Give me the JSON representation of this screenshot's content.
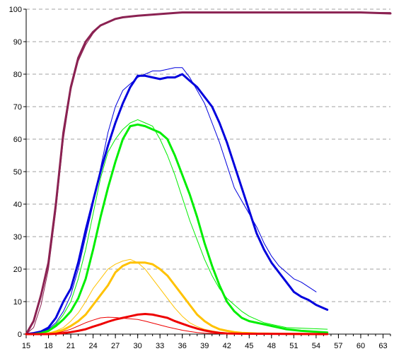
{
  "chart_data": {
    "type": "line",
    "title": "",
    "xlabel": "",
    "ylabel": "",
    "xlim": [
      15,
      64
    ],
    "ylim": [
      0,
      100
    ],
    "x_ticks": [
      "15",
      "18",
      "21",
      "24",
      "27",
      "30",
      "33",
      "36",
      "39",
      "42",
      "45",
      "48",
      "51",
      "54",
      "57",
      "60",
      "63"
    ],
    "y_ticks": [
      "0",
      "10",
      "20",
      "30",
      "40",
      "50",
      "60",
      "70",
      "80",
      "90",
      "100"
    ],
    "grid": "horizontal dashed",
    "legend": "none",
    "series": [
      {
        "color": "#8b2252",
        "width": 3,
        "points": [
          [
            15,
            0
          ],
          [
            16,
            4
          ],
          [
            17,
            12
          ],
          [
            18,
            22
          ],
          [
            19,
            40
          ],
          [
            20,
            62
          ],
          [
            21,
            76
          ],
          [
            22,
            85
          ],
          [
            23,
            90
          ],
          [
            24,
            93
          ],
          [
            25,
            95
          ],
          [
            26,
            96
          ],
          [
            27,
            97
          ],
          [
            28,
            97.5
          ],
          [
            30,
            98
          ],
          [
            33,
            98.5
          ],
          [
            36,
            99
          ],
          [
            40,
            99
          ],
          [
            45,
            99
          ],
          [
            50,
            99
          ],
          [
            55,
            99
          ],
          [
            60,
            99
          ],
          [
            64,
            98.7
          ]
        ]
      },
      {
        "color": "#8b2252",
        "width": 1,
        "points": [
          [
            15,
            0
          ],
          [
            16,
            2
          ],
          [
            17,
            9
          ],
          [
            18,
            20
          ],
          [
            19,
            38
          ],
          [
            20,
            60
          ],
          [
            21,
            75
          ],
          [
            22,
            84
          ],
          [
            23,
            89
          ],
          [
            24,
            92.5
          ],
          [
            25,
            95
          ],
          [
            26,
            96
          ],
          [
            27,
            97
          ],
          [
            28,
            97.5
          ],
          [
            30,
            98
          ],
          [
            33,
            98.5
          ],
          [
            36,
            99
          ],
          [
            40,
            99
          ],
          [
            45,
            99
          ],
          [
            50,
            99
          ],
          [
            55,
            99
          ],
          [
            60,
            99
          ],
          [
            64,
            99
          ]
        ]
      },
      {
        "color": "#0000dd",
        "width": 3,
        "points": [
          [
            15,
            0
          ],
          [
            16,
            0.3
          ],
          [
            17,
            0.8
          ],
          [
            18,
            2
          ],
          [
            19,
            5
          ],
          [
            20,
            10
          ],
          [
            21,
            14
          ],
          [
            22,
            22
          ],
          [
            23,
            32
          ],
          [
            24,
            41
          ],
          [
            25,
            50
          ],
          [
            26,
            58
          ],
          [
            27,
            65
          ],
          [
            28,
            71
          ],
          [
            29,
            76
          ],
          [
            30,
            79.5
          ],
          [
            31,
            79.5
          ],
          [
            32,
            79
          ],
          [
            33,
            78.5
          ],
          [
            34,
            79
          ],
          [
            35,
            79
          ],
          [
            36,
            80
          ],
          [
            37,
            78
          ],
          [
            38,
            76
          ],
          [
            39,
            73
          ],
          [
            40,
            70
          ],
          [
            41,
            65
          ],
          [
            42,
            59
          ],
          [
            43,
            52
          ],
          [
            44,
            45
          ],
          [
            45,
            38
          ],
          [
            46,
            31
          ],
          [
            47,
            26
          ],
          [
            48,
            22
          ],
          [
            49,
            19
          ],
          [
            50,
            16
          ],
          [
            51,
            13
          ],
          [
            52,
            11.5
          ],
          [
            53,
            10.5
          ],
          [
            54,
            9
          ],
          [
            55,
            8
          ],
          [
            55.5,
            7.5
          ]
        ]
      },
      {
        "color": "#0000dd",
        "width": 1,
        "points": [
          [
            15,
            0
          ],
          [
            16,
            0.2
          ],
          [
            17,
            0.6
          ],
          [
            18,
            1.5
          ],
          [
            19,
            3.5
          ],
          [
            20,
            7
          ],
          [
            21,
            12
          ],
          [
            22,
            20
          ],
          [
            23,
            30
          ],
          [
            24,
            40
          ],
          [
            25,
            51
          ],
          [
            26,
            62
          ],
          [
            27,
            70
          ],
          [
            28,
            75
          ],
          [
            29,
            77
          ],
          [
            30,
            79
          ],
          [
            31,
            80
          ],
          [
            32,
            81
          ],
          [
            33,
            81
          ],
          [
            34,
            81.5
          ],
          [
            35,
            82
          ],
          [
            36,
            82
          ],
          [
            37,
            79
          ],
          [
            38,
            75
          ],
          [
            39,
            71
          ],
          [
            40,
            65
          ],
          [
            41,
            59
          ],
          [
            42,
            52
          ],
          [
            43,
            45
          ],
          [
            44,
            41
          ],
          [
            45,
            37
          ],
          [
            46,
            33
          ],
          [
            47,
            28
          ],
          [
            48,
            24
          ],
          [
            49,
            21
          ],
          [
            50,
            19
          ],
          [
            51,
            17
          ],
          [
            52,
            16
          ],
          [
            53,
            14.5
          ],
          [
            54,
            13
          ]
        ]
      },
      {
        "color": "#00ee00",
        "width": 3,
        "points": [
          [
            15,
            0
          ],
          [
            16,
            0
          ],
          [
            17,
            0.3
          ],
          [
            18,
            1
          ],
          [
            19,
            2.5
          ],
          [
            20,
            4.5
          ],
          [
            21,
            7
          ],
          [
            22,
            11
          ],
          [
            23,
            17
          ],
          [
            24,
            26
          ],
          [
            25,
            36
          ],
          [
            26,
            45
          ],
          [
            27,
            53
          ],
          [
            28,
            60
          ],
          [
            29,
            64
          ],
          [
            30,
            64.5
          ],
          [
            31,
            64
          ],
          [
            32,
            63
          ],
          [
            33,
            62
          ],
          [
            34,
            60
          ],
          [
            35,
            55
          ],
          [
            36,
            49
          ],
          [
            37,
            43
          ],
          [
            38,
            36
          ],
          [
            39,
            28
          ],
          [
            40,
            21
          ],
          [
            41,
            15
          ],
          [
            42,
            10
          ],
          [
            43,
            7
          ],
          [
            44,
            5
          ],
          [
            45,
            4
          ],
          [
            46,
            3.5
          ],
          [
            47,
            3
          ],
          [
            48,
            2.5
          ],
          [
            49,
            2
          ],
          [
            50,
            1.5
          ],
          [
            52,
            1
          ],
          [
            55.5,
            0.5
          ]
        ]
      },
      {
        "color": "#00ee00",
        "width": 1,
        "points": [
          [
            15,
            0
          ],
          [
            16,
            0.1
          ],
          [
            17,
            0.4
          ],
          [
            18,
            1.2
          ],
          [
            19,
            3
          ],
          [
            20,
            6
          ],
          [
            21,
            10
          ],
          [
            22,
            17
          ],
          [
            23,
            26
          ],
          [
            24,
            37
          ],
          [
            25,
            48
          ],
          [
            26,
            56
          ],
          [
            27,
            60
          ],
          [
            28,
            63
          ],
          [
            29,
            65
          ],
          [
            30,
            66
          ],
          [
            31,
            65
          ],
          [
            32,
            64
          ],
          [
            33,
            60
          ],
          [
            34,
            55
          ],
          [
            35,
            49
          ],
          [
            36,
            42
          ],
          [
            37,
            35
          ],
          [
            38,
            29
          ],
          [
            39,
            23
          ],
          [
            40,
            18
          ],
          [
            41,
            14
          ],
          [
            42,
            11
          ],
          [
            43,
            9
          ],
          [
            44,
            7
          ],
          [
            45,
            5.5
          ],
          [
            46,
            4.5
          ],
          [
            47,
            3.5
          ],
          [
            48,
            3
          ],
          [
            49,
            2.5
          ],
          [
            50,
            2
          ],
          [
            55.5,
            1.5
          ]
        ]
      },
      {
        "color": "#ffc200",
        "width": 3,
        "points": [
          [
            15,
            0
          ],
          [
            17,
            0
          ],
          [
            18,
            0.2
          ],
          [
            19,
            0.6
          ],
          [
            20,
            1.3
          ],
          [
            21,
            2.5
          ],
          [
            22,
            4
          ],
          [
            23,
            6
          ],
          [
            24,
            9
          ],
          [
            25,
            12
          ],
          [
            26,
            15
          ],
          [
            27,
            19
          ],
          [
            28,
            21
          ],
          [
            29,
            22
          ],
          [
            30,
            22
          ],
          [
            31,
            22
          ],
          [
            32,
            21.5
          ],
          [
            33,
            20
          ],
          [
            34,
            18
          ],
          [
            35,
            15
          ],
          [
            36,
            12
          ],
          [
            37,
            9
          ],
          [
            38,
            6
          ],
          [
            39,
            4
          ],
          [
            40,
            2.5
          ],
          [
            41,
            1.5
          ],
          [
            42,
            1
          ],
          [
            43,
            0.6
          ],
          [
            44,
            0.4
          ],
          [
            46,
            0.2
          ],
          [
            49,
            0.1
          ],
          [
            55.5,
            0
          ]
        ]
      },
      {
        "color": "#ffc200",
        "width": 1,
        "points": [
          [
            15,
            0
          ],
          [
            17,
            0.1
          ],
          [
            18,
            0.3
          ],
          [
            19,
            1
          ],
          [
            20,
            2
          ],
          [
            21,
            4
          ],
          [
            22,
            6.5
          ],
          [
            23,
            10
          ],
          [
            24,
            14
          ],
          [
            25,
            17
          ],
          [
            26,
            20
          ],
          [
            27,
            21.5
          ],
          [
            28,
            22.5
          ],
          [
            29,
            23
          ],
          [
            30,
            22
          ],
          [
            31,
            20
          ],
          [
            32,
            17
          ],
          [
            33,
            14
          ],
          [
            34,
            11
          ],
          [
            35,
            8
          ],
          [
            36,
            5.5
          ],
          [
            37,
            3.5
          ],
          [
            38,
            2.3
          ],
          [
            39,
            1.5
          ],
          [
            40,
            1
          ],
          [
            41,
            0.6
          ],
          [
            42,
            0.4
          ],
          [
            44,
            0.2
          ],
          [
            47,
            0.1
          ],
          [
            55.5,
            0
          ]
        ]
      },
      {
        "color": "#ee0000",
        "width": 3,
        "points": [
          [
            15,
            0
          ],
          [
            18,
            0
          ],
          [
            19,
            0.1
          ],
          [
            20,
            0.3
          ],
          [
            21,
            0.6
          ],
          [
            22,
            1
          ],
          [
            23,
            1.5
          ],
          [
            24,
            2.3
          ],
          [
            25,
            3
          ],
          [
            26,
            3.8
          ],
          [
            27,
            4.5
          ],
          [
            28,
            5
          ],
          [
            29,
            5.5
          ],
          [
            30,
            6
          ],
          [
            31,
            6.2
          ],
          [
            32,
            6
          ],
          [
            33,
            5.5
          ],
          [
            34,
            5
          ],
          [
            35,
            4
          ],
          [
            36,
            3.2
          ],
          [
            37,
            2.4
          ],
          [
            38,
            1.7
          ],
          [
            39,
            1.1
          ],
          [
            40,
            0.7
          ],
          [
            41,
            0.4
          ],
          [
            42,
            0.2
          ],
          [
            44,
            0.1
          ],
          [
            55.5,
            0
          ]
        ]
      },
      {
        "color": "#ee0000",
        "width": 1,
        "points": [
          [
            15,
            0
          ],
          [
            18,
            0.1
          ],
          [
            19,
            0.3
          ],
          [
            20,
            0.8
          ],
          [
            21,
            1.5
          ],
          [
            22,
            2.5
          ],
          [
            23,
            3.5
          ],
          [
            24,
            4.3
          ],
          [
            25,
            5
          ],
          [
            26,
            5.2
          ],
          [
            27,
            5.1
          ],
          [
            28,
            4.9
          ],
          [
            29,
            4.7
          ],
          [
            30,
            4.5
          ],
          [
            31,
            4
          ],
          [
            32,
            3.4
          ],
          [
            33,
            2.8
          ],
          [
            34,
            2.2
          ],
          [
            35,
            1.7
          ],
          [
            36,
            1.2
          ],
          [
            37,
            0.8
          ],
          [
            38,
            0.5
          ],
          [
            39,
            0.3
          ],
          [
            40,
            0.2
          ],
          [
            42,
            0.1
          ],
          [
            55.5,
            0
          ]
        ]
      }
    ]
  }
}
